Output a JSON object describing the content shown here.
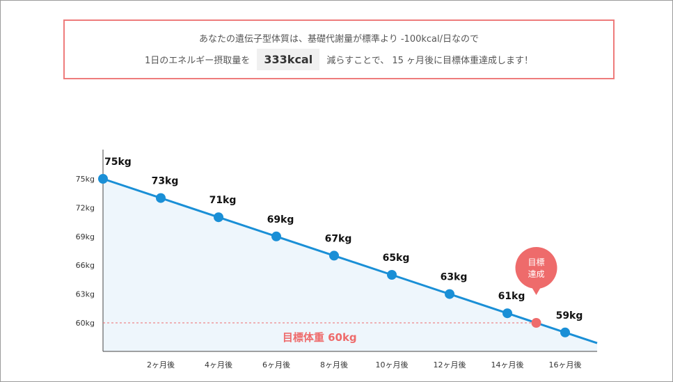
{
  "summary": {
    "line1": "あなたの遺伝子型体質は、基礎代謝量が標準より -100kcal/日なので",
    "line2_prefix": "1日のエネルギー摂取量を",
    "kcal": "333kcal",
    "line2_suffix": "減らすことで、 15 ヶ月後に目標体重達成します！"
  },
  "colors": {
    "line": "#1a8fd6",
    "point": "#1a8fd6",
    "area": "#eef6fc",
    "goal": "#ee6b6b",
    "box_border": "#ee7b7b"
  },
  "chart_data": {
    "type": "line",
    "title": "",
    "xlabel": "",
    "ylabel": "",
    "x_ticks": [
      "2ヶ月後",
      "4ヶ月後",
      "6ヶ月後",
      "8ヶ月後",
      "10ヶ月後",
      "12ヶ月後",
      "14ヶ月後",
      "16ヶ月後"
    ],
    "y_ticks": [
      {
        "value": 75,
        "label": "75kg"
      },
      {
        "value": 72,
        "label": "72kg"
      },
      {
        "value": 69,
        "label": "69kg"
      },
      {
        "value": 66,
        "label": "66kg"
      },
      {
        "value": 63,
        "label": "63kg"
      },
      {
        "value": 60,
        "label": "60kg"
      }
    ],
    "ylim": [
      57.4,
      75
    ],
    "xlim": [
      0,
      17
    ],
    "series": [
      {
        "points": [
          {
            "x": 0,
            "y": 75,
            "label": "75kg"
          },
          {
            "x": 2,
            "y": 73,
            "label": "73kg"
          },
          {
            "x": 4,
            "y": 71,
            "label": "71kg"
          },
          {
            "x": 6,
            "y": 69,
            "label": "69kg"
          },
          {
            "x": 8,
            "y": 67,
            "label": "67kg"
          },
          {
            "x": 10,
            "y": 65,
            "label": "65kg"
          },
          {
            "x": 12,
            "y": 63,
            "label": "63kg"
          },
          {
            "x": 14,
            "y": 61,
            "label": "61kg"
          },
          {
            "x": 16,
            "y": 59,
            "label": "59kg"
          }
        ]
      }
    ],
    "goal": {
      "weight": 60,
      "month": 15,
      "label": "目標体重 60kg",
      "balloon_line1": "目標",
      "balloon_line2": "達成"
    }
  }
}
